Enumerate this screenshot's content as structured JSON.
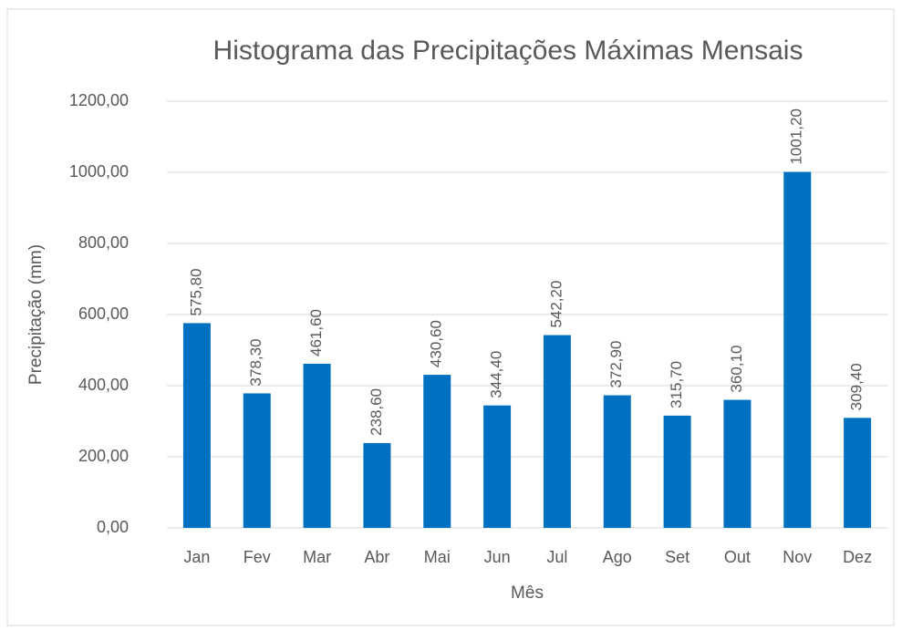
{
  "chart_data": {
    "type": "bar",
    "title": "Histograma das Precipitações Máximas Mensais",
    "x_label": "Mês",
    "y_label": "Precipitação (mm)",
    "categories": [
      "Jan",
      "Fev",
      "Mar",
      "Abr",
      "Mai",
      "Jun",
      "Jul",
      "Ago",
      "Set",
      "Out",
      "Nov",
      "Dez"
    ],
    "values": [
      575.8,
      378.3,
      461.6,
      238.6,
      430.6,
      344.4,
      542.2,
      372.9,
      315.7,
      360.1,
      1001.2,
      309.4
    ],
    "value_labels": [
      "575,80",
      "378,30",
      "461,60",
      "238,60",
      "430,60",
      "344,40",
      "542,20",
      "372,90",
      "315,70",
      "360,10",
      "1001,20",
      "309,40"
    ],
    "color": "#0070c0",
    "ylim": [
      0,
      1200
    ],
    "yticks": [
      {
        "value": 0,
        "label": "0,00"
      },
      {
        "value": 200,
        "label": "200,00"
      },
      {
        "value": 400,
        "label": "400,00"
      },
      {
        "value": 600,
        "label": "600,00"
      },
      {
        "value": 800,
        "label": "800,00"
      },
      {
        "value": 1000,
        "label": "1000,00"
      },
      {
        "value": 1200,
        "label": "1200,00"
      }
    ],
    "grid": true
  }
}
